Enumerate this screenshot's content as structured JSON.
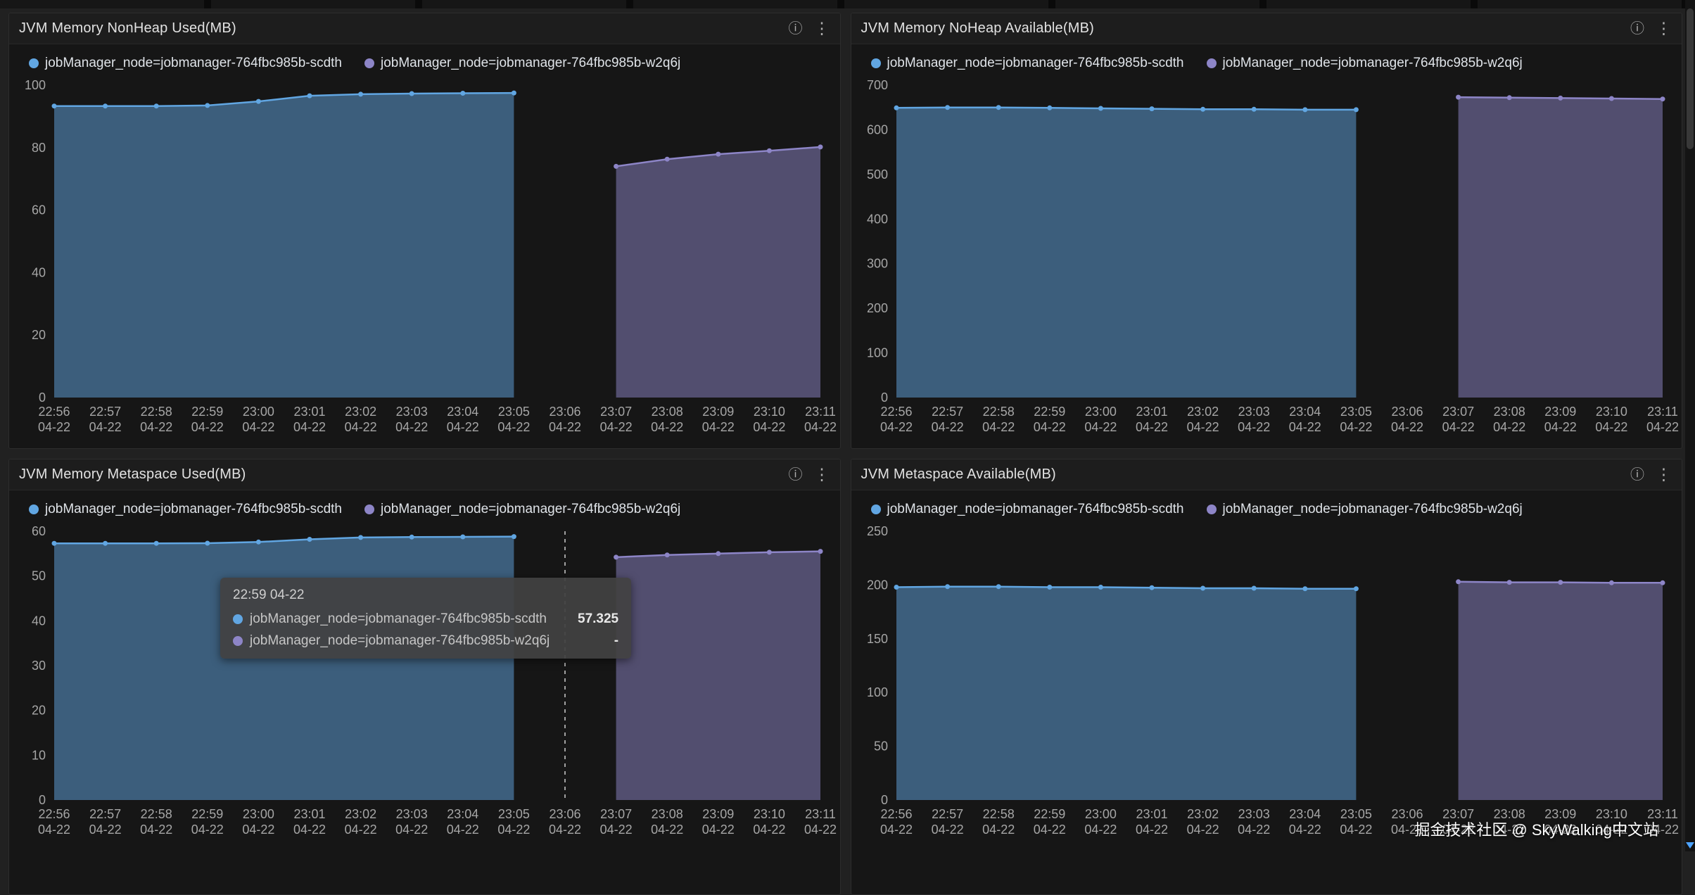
{
  "watermark": "掘金技术社区 @ SkyWalking中文站",
  "icons": {
    "info": "ⓘ",
    "kebab": "⋮"
  },
  "colors": {
    "series1": "#61a6e2",
    "series2": "#8d85c7",
    "fill_opacity": 0.5,
    "panel_background": "#161616",
    "header_background": "#1d1d1d",
    "page_background": "#212121",
    "axis_text": "#a6a6a6",
    "scroll_arrow": "#4da3ff"
  },
  "x": {
    "times": [
      "22:56",
      "22:57",
      "22:58",
      "22:59",
      "23:00",
      "23:01",
      "23:02",
      "23:03",
      "23:04",
      "23:05",
      "23:06",
      "23:07",
      "23:08",
      "23:09",
      "23:10",
      "23:11"
    ],
    "date": "04-22"
  },
  "tooltip": {
    "header": "22:59 04-22",
    "value1": "57.325",
    "value2": "-"
  },
  "chart_data": [
    {
      "type": "area",
      "title": "JVM Memory NonHeap Used(MB)",
      "xlabel": "",
      "ylabel": "",
      "ylim": [
        0,
        100
      ],
      "ystep": 20,
      "legend_position": "top-left",
      "series": [
        {
          "name": "jobManager_node=jobmanager-764fbc985b-scdth",
          "values": [
            93.3,
            93.3,
            93.3,
            93.5,
            94.8,
            96.6,
            97.1,
            97.3,
            97.4,
            97.5,
            null,
            null,
            null,
            null,
            null,
            null
          ]
        },
        {
          "name": "jobManager_node=jobmanager-764fbc985b-w2q6j",
          "values": [
            null,
            null,
            null,
            null,
            null,
            null,
            null,
            null,
            null,
            null,
            null,
            74.0,
            76.3,
            77.9,
            79.0,
            80.2
          ]
        }
      ]
    },
    {
      "type": "area",
      "title": "JVM Memory NoHeap Available(MB)",
      "xlabel": "",
      "ylabel": "",
      "ylim": [
        0,
        700
      ],
      "ystep": 100,
      "legend_position": "top-left",
      "series": [
        {
          "name": "jobManager_node=jobmanager-764fbc985b-scdth",
          "values": [
            649,
            650,
            650,
            649,
            648,
            647,
            646,
            646,
            645,
            645,
            null,
            null,
            null,
            null,
            null,
            null
          ]
        },
        {
          "name": "jobManager_node=jobmanager-764fbc985b-w2q6j",
          "values": [
            null,
            null,
            null,
            null,
            null,
            null,
            null,
            null,
            null,
            null,
            null,
            673,
            672,
            671,
            670,
            669
          ]
        }
      ]
    },
    {
      "type": "area",
      "title": "JVM Memory Metaspace Used(MB)",
      "xlabel": "",
      "ylabel": "",
      "ylim": [
        0,
        60
      ],
      "ystep": 10,
      "legend_position": "top-left",
      "crosshair_index": 10,
      "series": [
        {
          "name": "jobManager_node=jobmanager-764fbc985b-scdth",
          "values": [
            57.3,
            57.3,
            57.3,
            57.325,
            57.6,
            58.2,
            58.6,
            58.7,
            58.75,
            58.8,
            null,
            null,
            null,
            null,
            null,
            null
          ]
        },
        {
          "name": "jobManager_node=jobmanager-764fbc985b-w2q6j",
          "values": [
            null,
            null,
            null,
            null,
            null,
            null,
            null,
            null,
            null,
            null,
            null,
            54.2,
            54.7,
            55.0,
            55.3,
            55.5
          ]
        }
      ]
    },
    {
      "type": "area",
      "title": "JVM Metaspace Available(MB)",
      "xlabel": "",
      "ylabel": "",
      "ylim": [
        0,
        250
      ],
      "ystep": 50,
      "legend_position": "top-left",
      "series": [
        {
          "name": "jobManager_node=jobmanager-764fbc985b-scdth",
          "values": [
            198,
            198.5,
            198.5,
            198,
            198,
            197.5,
            197,
            197,
            196.5,
            196.5,
            null,
            null,
            null,
            null,
            null,
            null
          ]
        },
        {
          "name": "jobManager_node=jobmanager-764fbc985b-w2q6j",
          "values": [
            null,
            null,
            null,
            null,
            null,
            null,
            null,
            null,
            null,
            null,
            null,
            203,
            202.5,
            202.5,
            202,
            202
          ]
        }
      ]
    }
  ]
}
